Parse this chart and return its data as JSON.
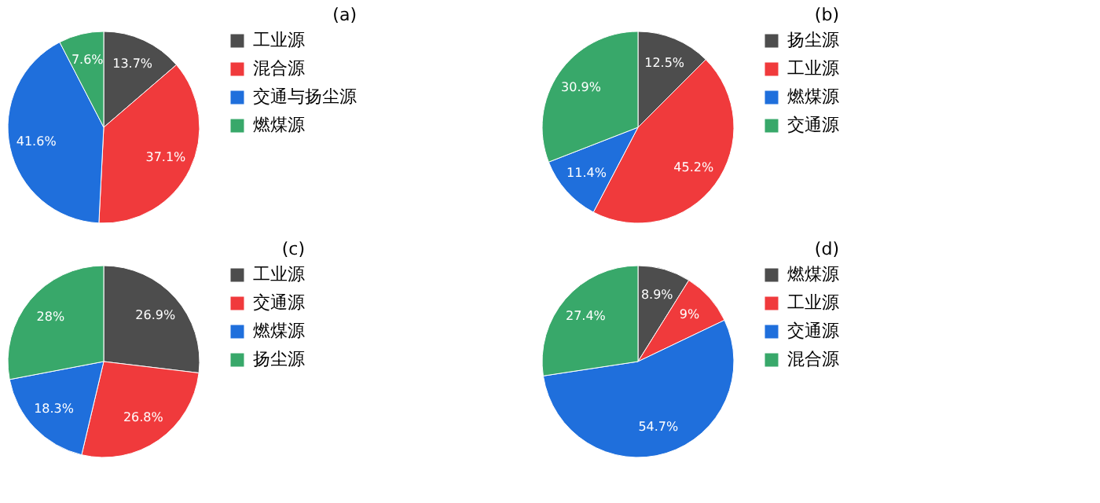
{
  "chart_data": [
    {
      "type": "pie",
      "title": "(a)",
      "categories": [
        "工业源",
        "混合源",
        "交通与扬尘源",
        "燃煤源"
      ],
      "values": [
        13.7,
        37.1,
        41.6,
        7.6
      ],
      "colors": [
        "#4d4d4d",
        "#f03a3c",
        "#1f6fdc",
        "#38a86a"
      ],
      "value_labels": [
        "13.7%",
        "37.1%",
        "41.6%",
        "7.6%"
      ],
      "legend": "right"
    },
    {
      "type": "pie",
      "title": "(b)",
      "categories": [
        "扬尘源",
        "工业源",
        "燃煤源",
        "交通源"
      ],
      "values": [
        12.5,
        45.2,
        11.4,
        30.9
      ],
      "colors": [
        "#4d4d4d",
        "#f03a3c",
        "#1f6fdc",
        "#38a86a"
      ],
      "value_labels": [
        "12.5%",
        "45.2%",
        "11.4%",
        "30.9%"
      ],
      "legend": "right"
    },
    {
      "type": "pie",
      "title": "(c)",
      "categories": [
        "工业源",
        "交通源",
        "燃煤源",
        "扬尘源"
      ],
      "values": [
        26.9,
        26.8,
        18.3,
        28
      ],
      "colors": [
        "#4d4d4d",
        "#f03a3c",
        "#1f6fdc",
        "#38a86a"
      ],
      "value_labels": [
        "26.9%",
        "26.8%",
        "18.3%",
        "28%"
      ],
      "legend": "right"
    },
    {
      "type": "pie",
      "title": "(d)",
      "categories": [
        "燃煤源",
        "工业源",
        "交通源",
        "混合源"
      ],
      "values": [
        8.9,
        9,
        54.7,
        27.4
      ],
      "colors": [
        "#4d4d4d",
        "#f03a3c",
        "#1f6fdc",
        "#38a86a"
      ],
      "value_labels": [
        "8.9%",
        "9%",
        "54.7%",
        "27.4%"
      ],
      "legend": "right"
    }
  ]
}
